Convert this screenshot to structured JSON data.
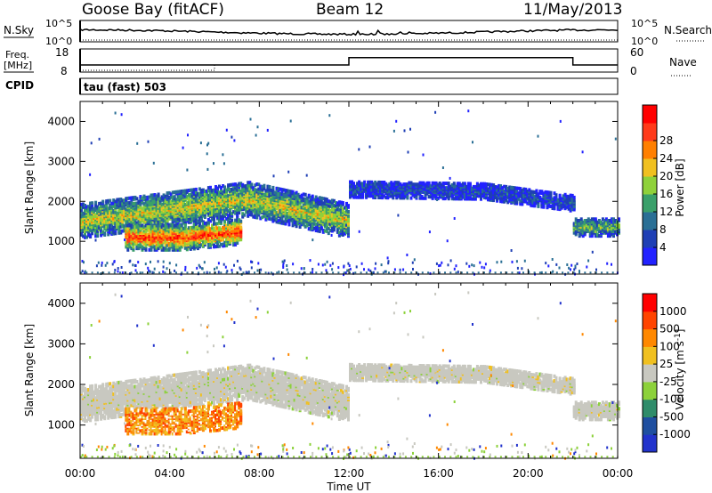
{
  "header": {
    "station": "Goose Bay (fitACF)",
    "beam": "Beam 12",
    "date": "11/May/2013"
  },
  "labels": {
    "nsky": "N.Sky",
    "nsearch": "N.Search",
    "freq": "Freq.",
    "freq_unit": "[MHz]",
    "nave": "Nave",
    "cpid": "CPID",
    "cpid_value": "tau (fast) 503"
  },
  "noise_panel": {
    "left_ticks": [
      "10^5",
      "10^0"
    ],
    "right_ticks": [
      "10^5",
      "10^0"
    ]
  },
  "freq_panel": {
    "left_ticks": [
      "18",
      "8"
    ],
    "right_ticks": [
      "60",
      "0"
    ],
    "freq_segments": [
      [
        0,
        6,
        10.5
      ],
      [
        6,
        12,
        10.5
      ],
      [
        12,
        22,
        14.6
      ],
      [
        22,
        24,
        10.5
      ]
    ],
    "nave_segments": [
      [
        0,
        6,
        0
      ],
      [
        6,
        12,
        15
      ],
      [
        12,
        22,
        35
      ],
      [
        22,
        24,
        15
      ]
    ]
  },
  "chart_data": [
    {
      "type": "heatmap",
      "name": "power",
      "ylabel": "Slant Range [km]",
      "xlabel": "Time UT",
      "xlim": [
        0,
        24
      ],
      "ylim": [
        180,
        4500
      ],
      "yticks": [
        "1000",
        "2000",
        "3000",
        "4000"
      ],
      "xticks": [
        "00:00",
        "04:00",
        "08:00",
        "12:00",
        "16:00",
        "20:00",
        "00:00"
      ],
      "colorbar": {
        "label": "Power [dB]",
        "ticks": [
          "4",
          "8",
          "12",
          "16",
          "20",
          "24",
          "28"
        ],
        "colors": [
          "#2222ff",
          "#1f3fb5",
          "#2a6f95",
          "#3aa06a",
          "#8fd13a",
          "#f0c020",
          "#ff7f00",
          "#ff3a1a",
          "#ff0000"
        ]
      },
      "echo_bands": [
        {
          "t": [
            0,
            12
          ],
          "center_start": 1550,
          "center_mid": 2100,
          "mid_t": 7.5,
          "center_end": 1550,
          "width": 420,
          "level": 0.55
        },
        {
          "t": [
            2.0,
            7.2
          ],
          "center_start": 1150,
          "center_mid": 1150,
          "mid_t": 4.5,
          "center_end": 1300,
          "width": 320,
          "level": 0.85
        },
        {
          "t": [
            12,
            22
          ],
          "center_start": 2350,
          "center_mid": 2300,
          "mid_t": 18,
          "center_end": 2000,
          "width": 200,
          "level": 0.15
        },
        {
          "t": [
            22,
            24
          ],
          "center_start": 1400,
          "center_mid": 1400,
          "mid_t": 23,
          "center_end": 1400,
          "width": 220,
          "level": 0.4
        }
      ]
    },
    {
      "type": "heatmap",
      "name": "velocity",
      "ylabel": "Slant Range [km]",
      "xlabel": "Time UT",
      "xlim": [
        0,
        24
      ],
      "ylim": [
        180,
        4500
      ],
      "yticks": [
        "1000",
        "2000",
        "3000",
        "4000"
      ],
      "xticks": [
        "00:00",
        "04:00",
        "08:00",
        "12:00",
        "16:00",
        "20:00",
        "00:00"
      ],
      "colorbar": {
        "label": "Velocity [m s^-1]",
        "ticks": [
          "1000",
          "500",
          "100",
          "25",
          "-25",
          "-100",
          "-500",
          "-1000"
        ],
        "colors": [
          "#2233cc",
          "#1f4fa0",
          "#2f8c6a",
          "#8cd13a",
          "#c8c8c0",
          "#f0c020",
          "#ff8800",
          "#ff4400",
          "#ff0000"
        ]
      }
    }
  ]
}
